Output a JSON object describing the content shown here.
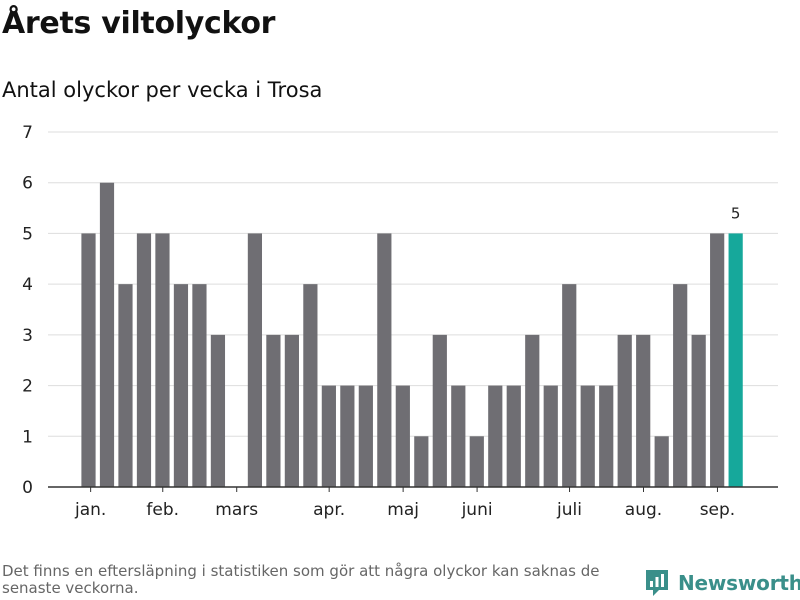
{
  "title": "Årets viltolyckor",
  "subtitle": "Antal olyckor per vecka i Trosa",
  "footnote": "Det finns en eftersläpning i statistiken som gör att några olyckor kan saknas de senaste veckorna.",
  "brand": "Newsworthy",
  "colors": {
    "bar": "#6f6e73",
    "highlight": "#16a89b",
    "grid": "#dddddd",
    "axis": "#333333",
    "brand": "#3a8f8a"
  },
  "chart_data": {
    "type": "bar",
    "values": [
      5,
      6,
      4,
      5,
      5,
      4,
      4,
      3,
      0,
      5,
      3,
      3,
      4,
      2,
      2,
      2,
      5,
      2,
      1,
      3,
      2,
      1,
      2,
      2,
      3,
      2,
      4,
      2,
      2,
      3,
      3,
      1,
      4,
      3,
      5,
      5
    ],
    "highlight_index": 35,
    "highlight_label": "5",
    "ylim": [
      0,
      7
    ],
    "yticks": [
      "0",
      "1",
      "2",
      "3",
      "4",
      "5",
      "6",
      "7"
    ],
    "month_labels": [
      {
        "label": "jan.",
        "bar": 0.5
      },
      {
        "label": "feb.",
        "bar": 4.4
      },
      {
        "label": "mars",
        "bar": 8.4
      },
      {
        "label": "apr.",
        "bar": 13.4
      },
      {
        "label": "maj",
        "bar": 17.4
      },
      {
        "label": "juni",
        "bar": 21.4
      },
      {
        "label": "juli",
        "bar": 26.4
      },
      {
        "label": "aug.",
        "bar": 30.4
      },
      {
        "label": "sep.",
        "bar": 34.4
      }
    ],
    "grid": true,
    "legend": "none"
  }
}
